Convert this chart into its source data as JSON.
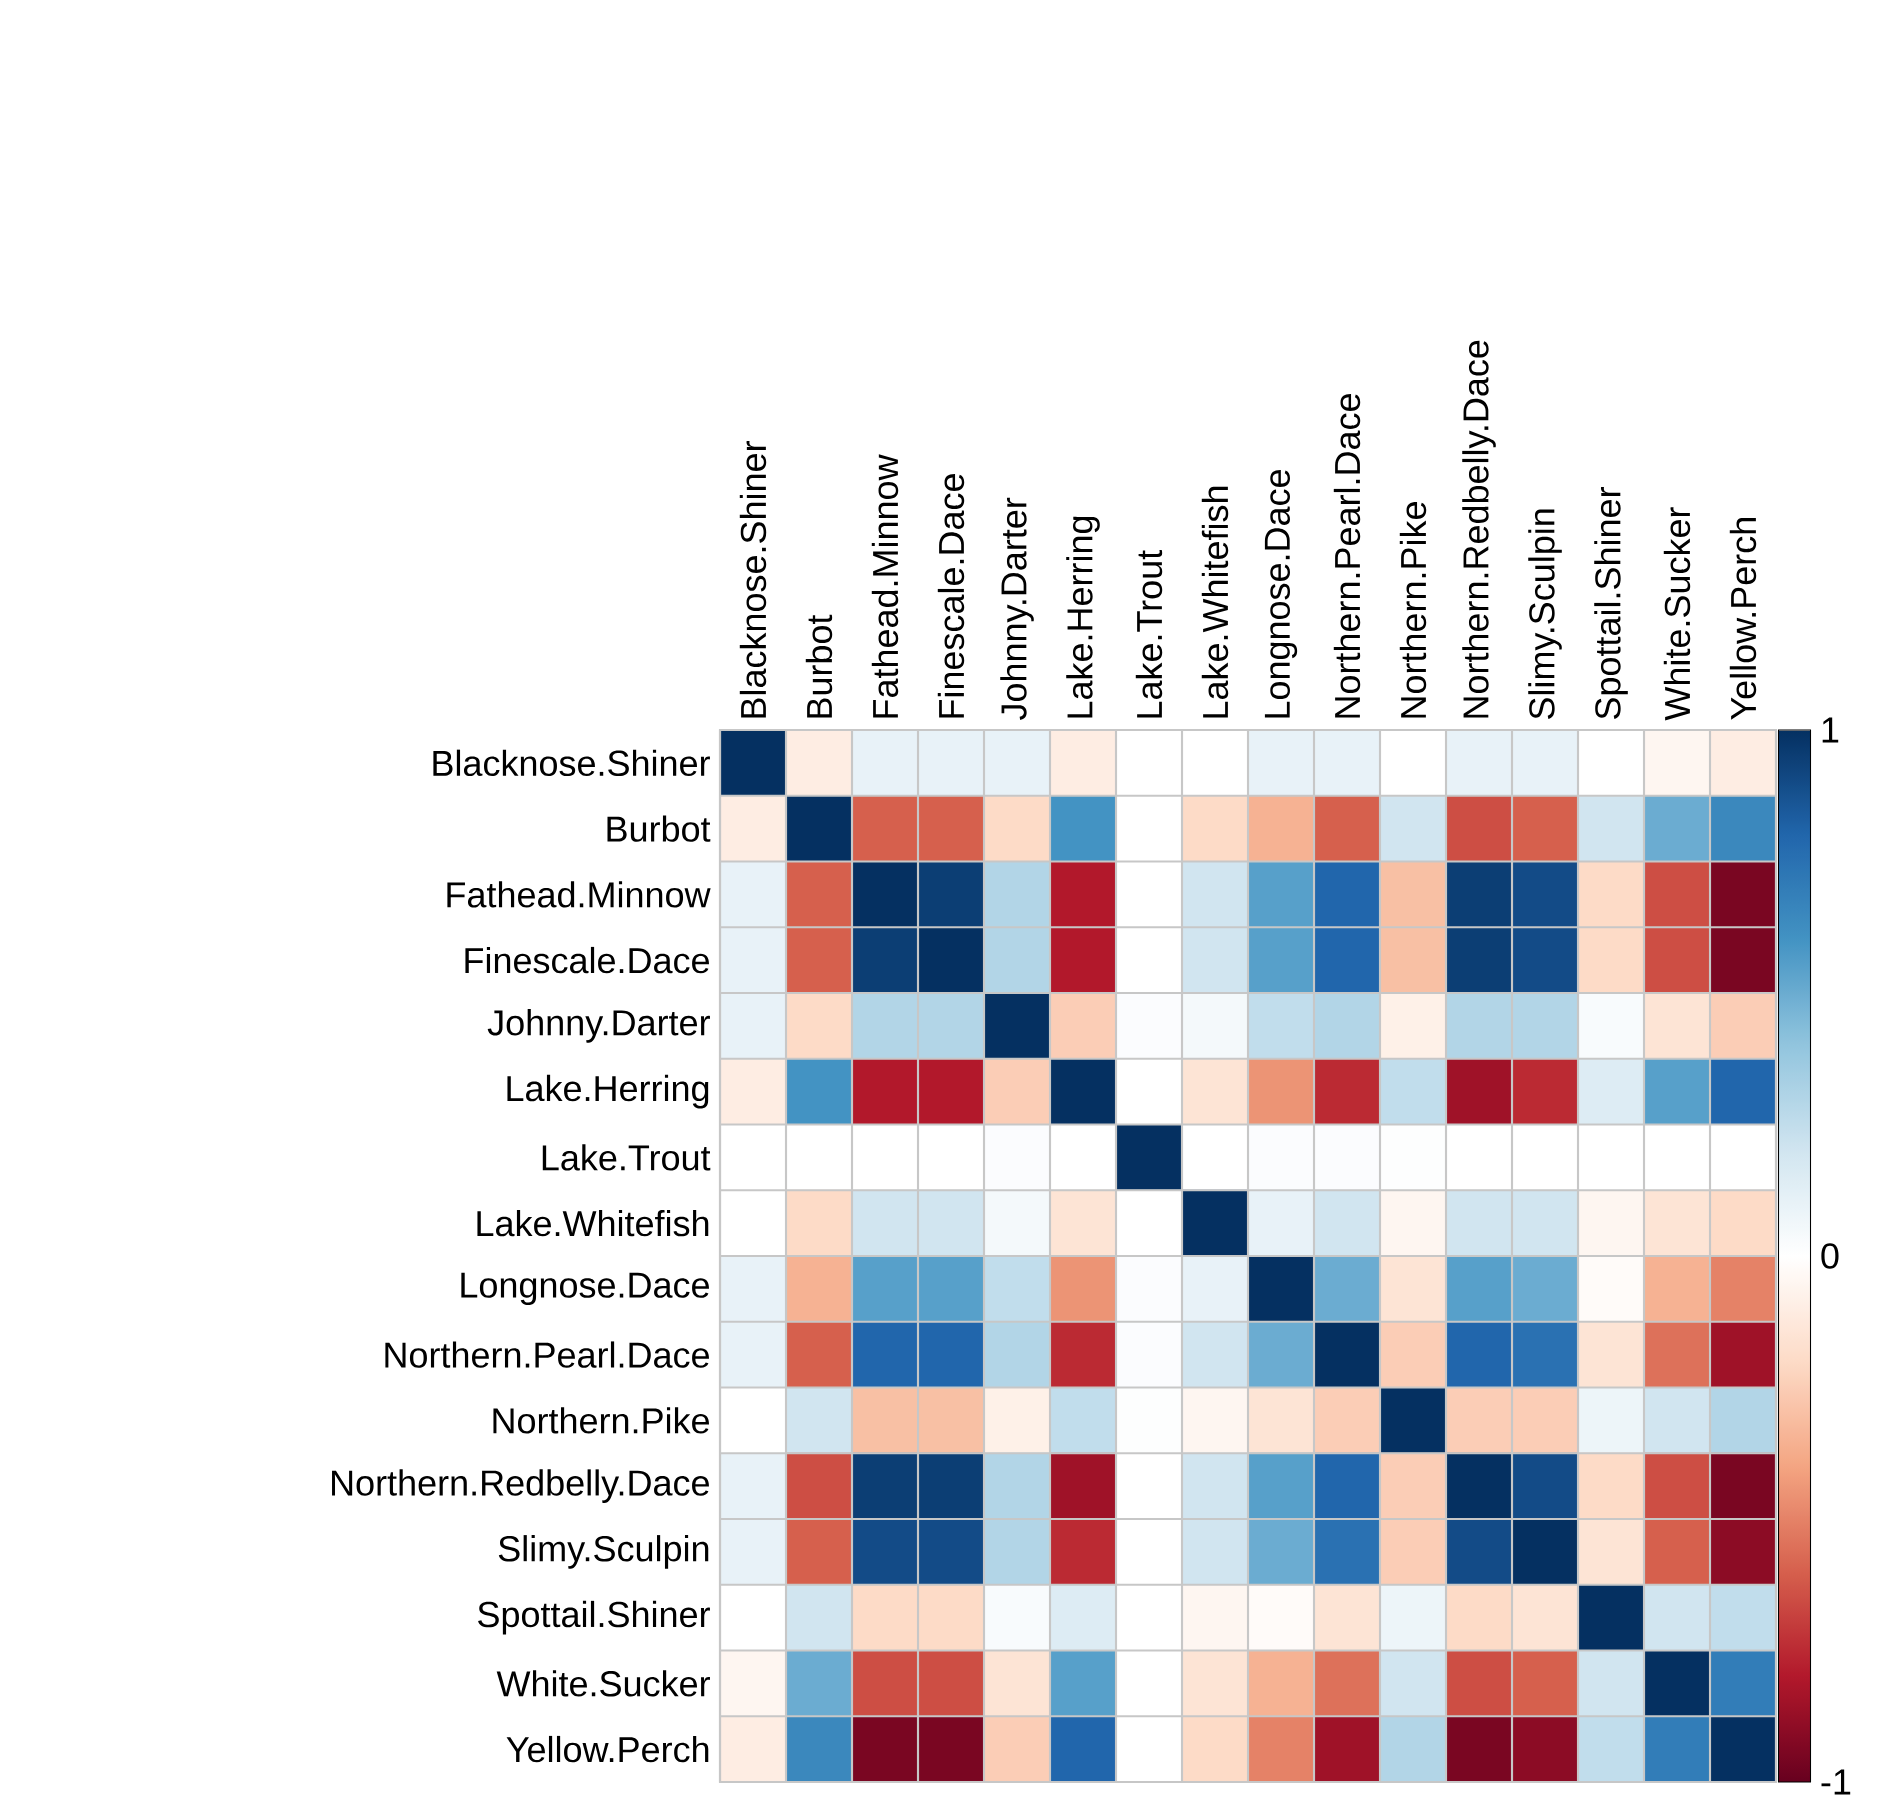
{
  "chart_data": {
    "type": "heatmap",
    "categories": [
      "Blacknose.Shiner",
      "Burbot",
      "Fathead.Minnow",
      "Finescale.Dace",
      "Johnny.Darter",
      "Lake.Herring",
      "Lake.Trout",
      "Lake.Whitefish",
      "Longnose.Dace",
      "Northern.Pearl.Dace",
      "Northern.Pike",
      "Northern.Redbelly.Dace",
      "Slimy.Sculpin",
      "Spottail.Shiner",
      "White.Sucker",
      "Yellow.Perch"
    ],
    "y_categories": [
      "Blacknose.Shiner",
      "Burbot",
      "Fathead.Minnow",
      "Finescale.Dace",
      "Johnny.Darter",
      "Lake.Herring",
      "Lake.Trout",
      "Lake.Whitefish",
      "Longnose.Dace",
      "Northern.Pearl.Dace",
      "Northern.Pike",
      "Northern.Redbelly.Dace",
      "Slimy.Sculpin",
      "Spottail.Shiner",
      "White.Sucker",
      "Yellow.Perch"
    ],
    "cells": [
      [
        1,
        -0.1,
        0.1,
        0.1,
        0.1,
        -0.1,
        0,
        0,
        0.1,
        0.1,
        0,
        0.1,
        0.1,
        0,
        -0.05,
        -0.1
      ],
      [
        -0.1,
        1,
        -0.6,
        -0.6,
        -0.2,
        0.6,
        0,
        -0.2,
        -0.35,
        -0.6,
        0.2,
        -0.65,
        -0.6,
        0.2,
        0.5,
        0.65
      ],
      [
        0.1,
        -0.6,
        1,
        0.95,
        0.3,
        -0.8,
        0,
        0.2,
        0.55,
        0.8,
        -0.3,
        0.95,
        0.9,
        -0.2,
        -0.65,
        -0.95
      ],
      [
        0.1,
        -0.6,
        0.95,
        1,
        0.3,
        -0.8,
        0,
        0.2,
        0.55,
        0.8,
        -0.3,
        0.95,
        0.9,
        -0.2,
        -0.65,
        -0.95
      ],
      [
        0.1,
        -0.2,
        0.3,
        0.3,
        1,
        -0.25,
        0.02,
        0.05,
        0.25,
        0.3,
        -0.08,
        0.3,
        0.3,
        0.03,
        -0.15,
        -0.25
      ],
      [
        -0.1,
        0.6,
        -0.8,
        -0.8,
        -0.25,
        1,
        0,
        -0.15,
        -0.45,
        -0.75,
        0.25,
        -0.85,
        -0.75,
        0.15,
        0.55,
        0.8
      ],
      [
        0,
        0,
        0,
        0,
        0.02,
        0,
        1,
        0,
        0.02,
        0.02,
        0.01,
        0,
        0,
        0,
        0,
        0
      ],
      [
        0,
        -0.2,
        0.2,
        0.2,
        0.05,
        -0.15,
        0,
        1,
        0.1,
        0.2,
        -0.05,
        0.2,
        0.2,
        -0.05,
        -0.15,
        -0.2
      ],
      [
        0.1,
        -0.35,
        0.55,
        0.55,
        0.25,
        -0.45,
        0.02,
        0.1,
        1,
        0.5,
        -0.15,
        0.55,
        0.5,
        -0.02,
        -0.35,
        -0.5
      ],
      [
        0.1,
        -0.6,
        0.8,
        0.8,
        0.3,
        -0.75,
        0.02,
        0.2,
        0.5,
        1,
        -0.25,
        0.8,
        0.75,
        -0.15,
        -0.55,
        -0.85
      ],
      [
        0,
        0.2,
        -0.3,
        -0.3,
        -0.08,
        0.25,
        0.01,
        -0.05,
        -0.15,
        -0.25,
        1,
        -0.25,
        -0.25,
        0.08,
        0.2,
        0.3
      ],
      [
        0.1,
        -0.65,
        0.95,
        0.95,
        0.3,
        -0.85,
        0,
        0.2,
        0.55,
        0.8,
        -0.25,
        1,
        0.9,
        -0.2,
        -0.65,
        -0.95
      ],
      [
        0.1,
        -0.6,
        0.9,
        0.9,
        0.3,
        -0.75,
        0,
        0.2,
        0.5,
        0.75,
        -0.25,
        0.9,
        1,
        -0.15,
        -0.6,
        -0.9
      ],
      [
        0,
        0.2,
        -0.2,
        -0.2,
        0.03,
        0.15,
        0,
        -0.05,
        -0.02,
        -0.15,
        0.08,
        -0.2,
        -0.15,
        1,
        0.2,
        0.25
      ],
      [
        -0.05,
        0.5,
        -0.65,
        -0.65,
        -0.15,
        0.55,
        0,
        -0.15,
        -0.35,
        -0.55,
        0.2,
        -0.65,
        -0.6,
        0.2,
        1,
        0.7
      ],
      [
        -0.1,
        0.65,
        -0.95,
        -0.95,
        -0.25,
        0.8,
        0,
        -0.2,
        -0.5,
        -0.85,
        0.3,
        -0.95,
        -0.9,
        0.25,
        0.7,
        1
      ]
    ],
    "clim": [
      -1,
      1
    ],
    "cticks": [
      -1,
      0,
      1
    ]
  }
}
